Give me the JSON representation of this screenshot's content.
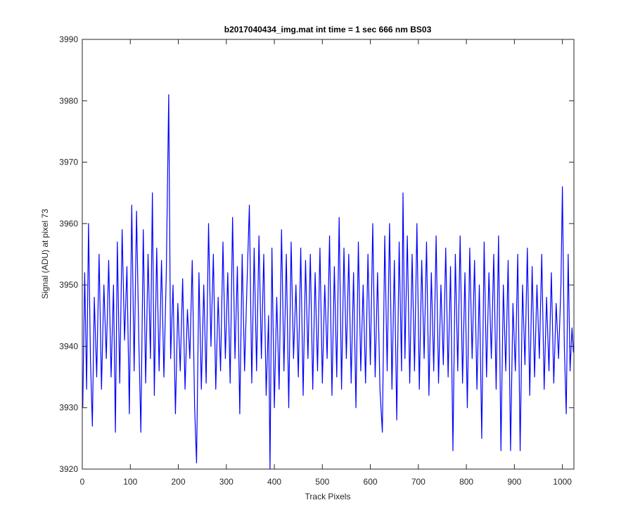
{
  "chart_data": {
    "type": "line",
    "title": "b2017040434_img.mat int time = 1 sec  666 nm BS03",
    "x_label": "Track Pixels",
    "y_label": "Signal (ADU) at pixel 73",
    "x": [
      1,
      5,
      9,
      13,
      17,
      21,
      25,
      30,
      35,
      40,
      45,
      50,
      55,
      60,
      65,
      69,
      73,
      78,
      83,
      88,
      93,
      98,
      103,
      108,
      113,
      118,
      122,
      127,
      132,
      137,
      142,
      146,
      150,
      155,
      160,
      165,
      170,
      175,
      180,
      184,
      189,
      194,
      199,
      204,
      209,
      214,
      219,
      224,
      229,
      234,
      238,
      243,
      248,
      253,
      258,
      263,
      268,
      273,
      278,
      283,
      288,
      293,
      298,
      303,
      308,
      313,
      318,
      323,
      328,
      333,
      338,
      343,
      348,
      353,
      358,
      363,
      368,
      373,
      378,
      383,
      388,
      391,
      395,
      400,
      405,
      410,
      415,
      420,
      425,
      430,
      435,
      440,
      445,
      450,
      455,
      460,
      465,
      470,
      475,
      480,
      485,
      490,
      495,
      500,
      505,
      510,
      515,
      520,
      525,
      530,
      535,
      540,
      545,
      550,
      555,
      560,
      565,
      570,
      575,
      580,
      585,
      590,
      595,
      600,
      605,
      610,
      615,
      620,
      625,
      630,
      635,
      640,
      645,
      650,
      655,
      660,
      665,
      668,
      672,
      677,
      682,
      687,
      692,
      697,
      702,
      707,
      712,
      717,
      722,
      727,
      732,
      737,
      742,
      747,
      752,
      757,
      762,
      767,
      772,
      777,
      782,
      787,
      792,
      797,
      802,
      807,
      812,
      817,
      822,
      827,
      832,
      837,
      842,
      847,
      852,
      857,
      862,
      867,
      872,
      877,
      882,
      887,
      892,
      897,
      902,
      907,
      912,
      917,
      922,
      927,
      932,
      937,
      942,
      947,
      952,
      957,
      962,
      967,
      972,
      977,
      982,
      987,
      992,
      997,
      1000,
      1004,
      1008,
      1012,
      1016,
      1020,
      1023
    ],
    "series": [
      {
        "color": "#0000ff",
        "values": [
          3930,
          3952,
          3933,
          3960,
          3938,
          3927,
          3948,
          3935,
          3955,
          3933,
          3950,
          3938,
          3954,
          3935,
          3950,
          3926,
          3957,
          3934,
          3959,
          3941,
          3953,
          3929,
          3963,
          3936,
          3962,
          3940,
          3926,
          3959,
          3934,
          3955,
          3938,
          3965,
          3932,
          3956,
          3936,
          3954,
          3935,
          3952,
          3981,
          3938,
          3950,
          3929,
          3947,
          3936,
          3951,
          3933,
          3946,
          3938,
          3954,
          3930,
          3921,
          3952,
          3933,
          3950,
          3934,
          3960,
          3940,
          3955,
          3933,
          3948,
          3936,
          3957,
          3938,
          3952,
          3934,
          3961,
          3938,
          3953,
          3929,
          3955,
          3936,
          3950,
          3963,
          3934,
          3956,
          3936,
          3958,
          3938,
          3955,
          3932,
          3945,
          3920,
          3956,
          3930,
          3948,
          3933,
          3959,
          3936,
          3955,
          3930,
          3957,
          3938,
          3950,
          3935,
          3956,
          3932,
          3954,
          3938,
          3955,
          3933,
          3952,
          3936,
          3956,
          3934,
          3950,
          3938,
          3958,
          3932,
          3953,
          3935,
          3961,
          3933,
          3956,
          3938,
          3955,
          3934,
          3952,
          3930,
          3957,
          3936,
          3950,
          3934,
          3955,
          3937,
          3960,
          3935,
          3952,
          3933,
          3926,
          3958,
          3936,
          3960,
          3933,
          3954,
          3928,
          3957,
          3936,
          3965,
          3938,
          3958,
          3934,
          3955,
          3936,
          3960,
          3933,
          3954,
          3938,
          3957,
          3932,
          3952,
          3936,
          3958,
          3934,
          3950,
          3937,
          3956,
          3935,
          3953,
          3923,
          3955,
          3936,
          3958,
          3934,
          3952,
          3930,
          3956,
          3938,
          3954,
          3933,
          3950,
          3925,
          3957,
          3935,
          3952,
          3938,
          3955,
          3933,
          3958,
          3923,
          3950,
          3936,
          3954,
          3923,
          3947,
          3936,
          3955,
          3923,
          3950,
          3937,
          3956,
          3932,
          3953,
          3935,
          3950,
          3938,
          3955,
          3933,
          3948,
          3936,
          3952,
          3934,
          3947,
          3938,
          3950,
          3966,
          3940,
          3929,
          3955,
          3936,
          3943,
          3939
        ]
      }
    ],
    "xlim": [
      0,
      1024
    ],
    "ylim": [
      3920,
      3990
    ],
    "xticks": [
      0,
      100,
      200,
      300,
      400,
      500,
      600,
      700,
      800,
      900,
      1000
    ],
    "yticks": [
      3920,
      3930,
      3940,
      3950,
      3960,
      3970,
      3980,
      3990
    ]
  }
}
